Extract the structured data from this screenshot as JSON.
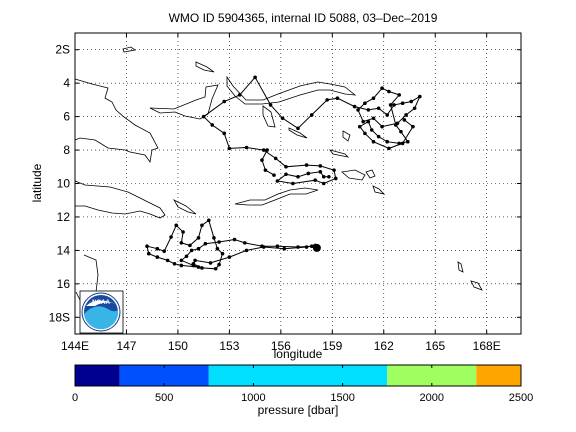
{
  "title": "WMO ID 5904365, internal ID 5088, 03–Dec–2019",
  "chart_data": {
    "type": "line",
    "title": "WMO ID 5904365, internal ID 5088, 03–Dec–2019",
    "xlabel": "longitude",
    "ylabel": "latitude",
    "xlim": [
      144,
      170
    ],
    "ylim": [
      19,
      1
    ],
    "grid": true,
    "xticks": [
      {
        "v": 144,
        "label": "144E"
      },
      {
        "v": 147,
        "label": "147"
      },
      {
        "v": 150,
        "label": "150"
      },
      {
        "v": 153,
        "label": "153"
      },
      {
        "v": 156,
        "label": "156"
      },
      {
        "v": 159,
        "label": "159"
      },
      {
        "v": 162,
        "label": "162"
      },
      {
        "v": 165,
        "label": "165"
      },
      {
        "v": 168,
        "label": "168E"
      }
    ],
    "yticks": [
      {
        "v": 2,
        "label": "2S"
      },
      {
        "v": 4,
        "label": "4"
      },
      {
        "v": 6,
        "label": "6"
      },
      {
        "v": 8,
        "label": "8"
      },
      {
        "v": 10,
        "label": "10"
      },
      {
        "v": 12,
        "label": "12"
      },
      {
        "v": 14,
        "label": "14"
      },
      {
        "v": 16,
        "label": "16"
      },
      {
        "v": 18,
        "label": "18S"
      }
    ],
    "trajectory": [
      [
        158.1,
        13.9
      ],
      [
        157.8,
        13.75
      ],
      [
        157.0,
        13.8
      ],
      [
        155.8,
        13.75
      ],
      [
        154.9,
        13.75
      ],
      [
        153.9,
        13.55
      ],
      [
        153.3,
        13.35
      ],
      [
        152.4,
        13.5
      ],
      [
        151.6,
        13.6
      ],
      [
        151.2,
        13.9
      ],
      [
        150.8,
        14.0
      ],
      [
        150.5,
        14.35
      ],
      [
        150.2,
        14.6
      ],
      [
        150.9,
        14.9
      ],
      [
        151.2,
        15.0
      ],
      [
        150.2,
        14.9
      ],
      [
        149.8,
        14.8
      ],
      [
        149.4,
        14.6
      ],
      [
        148.8,
        14.4
      ],
      [
        148.3,
        14.2
      ],
      [
        148.2,
        13.75
      ],
      [
        148.8,
        13.9
      ],
      [
        149.2,
        14.05
      ],
      [
        149.6,
        13.2
      ],
      [
        149.9,
        12.5
      ],
      [
        150.3,
        12.9
      ],
      [
        150.2,
        13.55
      ],
      [
        150.7,
        13.7
      ],
      [
        151.2,
        13.25
      ],
      [
        151.4,
        12.5
      ],
      [
        151.8,
        12.2
      ],
      [
        152.1,
        13.25
      ],
      [
        152.3,
        13.9
      ],
      [
        152.6,
        14.2
      ],
      [
        152.4,
        14.85
      ],
      [
        152.2,
        15.1
      ],
      [
        151.4,
        15.05
      ],
      [
        150.9,
        14.8
      ],
      [
        151.0,
        14.6
      ],
      [
        151.9,
        14.75
      ],
      [
        153.0,
        14.4
      ],
      [
        154.0,
        14.0
      ],
      [
        155.0,
        13.8
      ],
      [
        156.2,
        13.9
      ],
      [
        157.5,
        13.8
      ],
      [
        158.0,
        13.7
      ],
      [
        158.2,
        13.9
      ]
    ],
    "trajectory_north": [
      [
        158.8,
        9.6
      ],
      [
        158.5,
        9.6
      ],
      [
        158.3,
        9.3
      ],
      [
        157.6,
        9.4
      ],
      [
        157.0,
        9.6
      ],
      [
        156.3,
        9.45
      ],
      [
        155.8,
        9.85
      ],
      [
        156.7,
        10.0
      ],
      [
        158.0,
        9.8
      ],
      [
        158.5,
        10.0
      ],
      [
        159.2,
        9.7
      ],
      [
        159.1,
        9.2
      ],
      [
        158.3,
        8.95
      ],
      [
        157.5,
        8.9
      ],
      [
        156.3,
        9.0
      ],
      [
        155.7,
        8.5
      ],
      [
        155.0,
        8.0
      ],
      [
        154.0,
        7.85
      ],
      [
        153.0,
        7.9
      ],
      [
        152.7,
        7.0
      ],
      [
        152.0,
        6.5
      ],
      [
        151.5,
        6.0
      ],
      [
        152.7,
        5.1
      ],
      [
        153.6,
        4.7
      ],
      [
        154.5,
        3.65
      ],
      [
        155.4,
        5.3
      ],
      [
        156.1,
        6.1
      ],
      [
        157.0,
        6.7
      ],
      [
        157.8,
        5.9
      ],
      [
        158.7,
        5.0
      ],
      [
        159.3,
        4.9
      ],
      [
        160.3,
        5.4
      ],
      [
        161.1,
        5.6
      ],
      [
        161.7,
        5.5
      ],
      [
        162.2,
        5.9
      ],
      [
        162.6,
        5.3
      ],
      [
        163.1,
        5.2
      ],
      [
        163.6,
        5.1
      ],
      [
        164.1,
        4.8
      ],
      [
        163.8,
        5.5
      ],
      [
        163.3,
        5.9
      ],
      [
        162.8,
        6.4
      ],
      [
        161.9,
        6.6
      ],
      [
        161.4,
        6.1
      ],
      [
        160.8,
        6.3
      ],
      [
        160.5,
        5.6
      ],
      [
        160.9,
        5.2
      ],
      [
        161.4,
        4.9
      ],
      [
        161.9,
        4.3
      ],
      [
        162.3,
        4.5
      ],
      [
        162.9,
        4.7
      ],
      [
        162.4,
        5.3
      ],
      [
        162.7,
        6.5
      ],
      [
        163.0,
        6.9
      ],
      [
        163.4,
        7.5
      ],
      [
        162.9,
        7.6
      ],
      [
        162.2,
        7.5
      ],
      [
        161.7,
        7.2
      ],
      [
        161.3,
        6.8
      ],
      [
        161.1,
        6.3
      ],
      [
        160.6,
        6.6
      ],
      [
        160.9,
        7.0
      ],
      [
        161.4,
        7.5
      ],
      [
        162.3,
        7.9
      ],
      [
        163.1,
        7.6
      ],
      [
        163.7,
        6.6
      ],
      [
        163.2,
        6.2
      ]
    ],
    "trajectory_north_connector": [
      [
        155.2,
        8.0
      ],
      [
        154.9,
        8.6
      ],
      [
        155.1,
        9.2
      ],
      [
        155.6,
        9.5
      ]
    ],
    "colorbar": {
      "label": "pressure [dbar]",
      "ticks": [
        0,
        500,
        1000,
        1500,
        2000,
        2500
      ],
      "range": [
        0,
        2500
      ],
      "bins": [
        {
          "from": 0,
          "to": 250,
          "color": "#00008f"
        },
        {
          "from": 250,
          "to": 750,
          "color": "#0050ff"
        },
        {
          "from": 750,
          "to": 1250,
          "color": "#00dfff"
        },
        {
          "from": 1250,
          "to": 1750,
          "color": "#00dfff"
        },
        {
          "from": 1750,
          "to": 2250,
          "color": "#9fff60"
        },
        {
          "from": 2250,
          "to": 2500,
          "color": "#ffa500"
        }
      ]
    }
  },
  "logo": {
    "text": "NOAA"
  }
}
